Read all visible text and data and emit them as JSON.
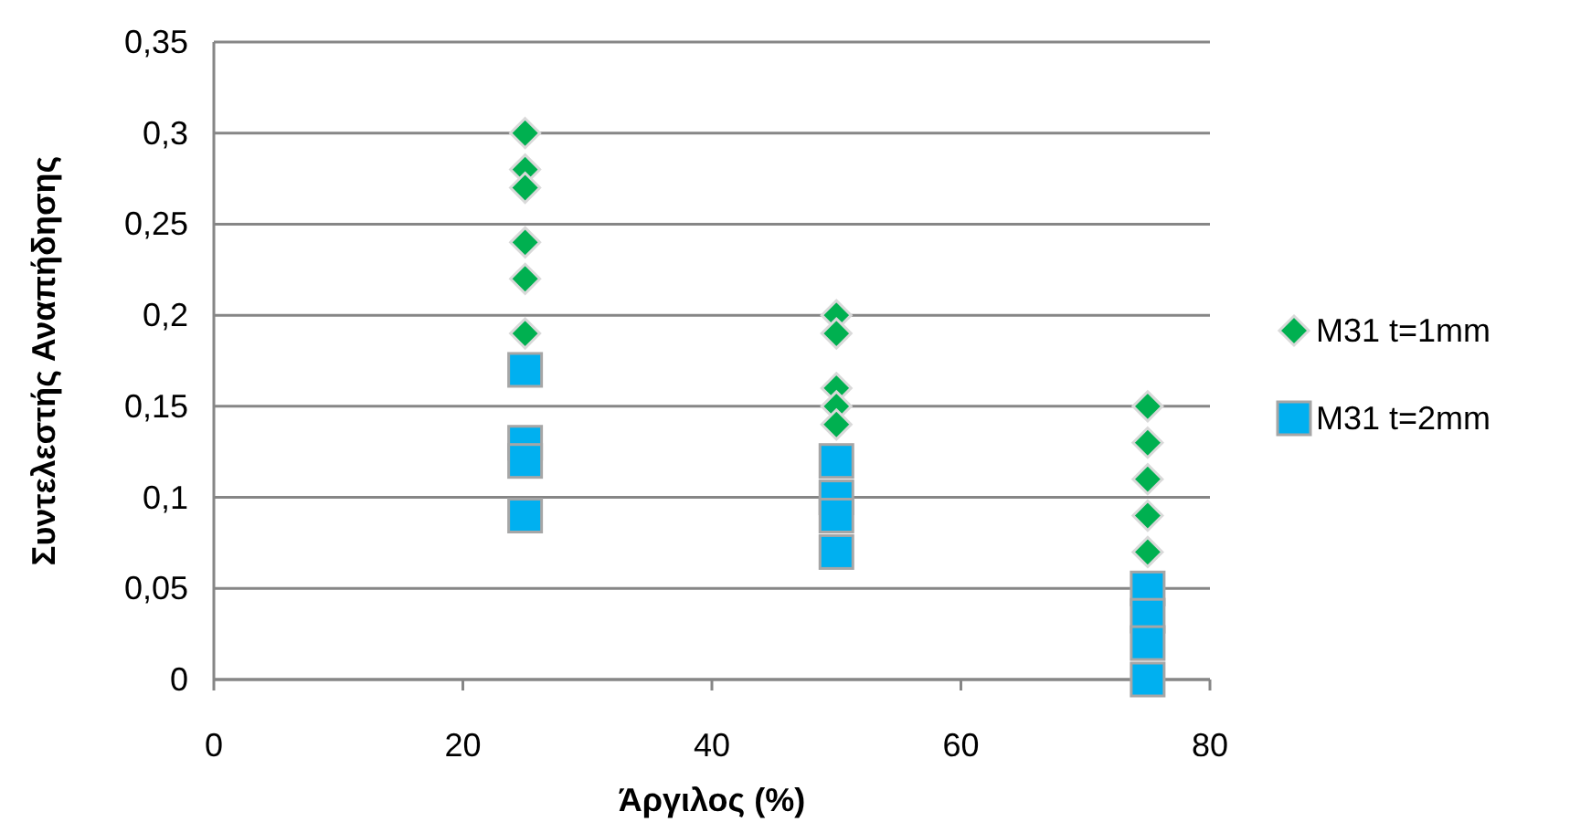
{
  "chart_data": {
    "type": "scatter",
    "xlabel": "Άργιλος (%)",
    "ylabel": "Συντελεστής Αναπήδησης",
    "xlim": [
      0,
      80
    ],
    "xticks": [
      0,
      20,
      40,
      60,
      80
    ],
    "ylim": [
      0,
      0.35
    ],
    "yticks": [
      {
        "value": 0,
        "label": "0"
      },
      {
        "value": 0.05,
        "label": "0,05"
      },
      {
        "value": 0.1,
        "label": "0,1"
      },
      {
        "value": 0.15,
        "label": "0,15"
      },
      {
        "value": 0.2,
        "label": "0,2"
      },
      {
        "value": 0.25,
        "label": "0,25"
      },
      {
        "value": 0.3,
        "label": "0,3"
      },
      {
        "value": 0.35,
        "label": "0,35"
      }
    ],
    "grid": "y",
    "legend": "right",
    "series": [
      {
        "name": "M31 t=1mm",
        "color": "#00b050",
        "marker": "diamond",
        "x": [
          25,
          25,
          25,
          25,
          25,
          25,
          50,
          50,
          50,
          50,
          50,
          75,
          75,
          75,
          75,
          75
        ],
        "values": [
          0.3,
          0.28,
          0.27,
          0.24,
          0.22,
          0.19,
          0.2,
          0.19,
          0.16,
          0.15,
          0.14,
          0.15,
          0.13,
          0.11,
          0.09,
          0.07
        ]
      },
      {
        "name": "M31 t=2mm",
        "color": "#00b0f0",
        "marker": "square",
        "x": [
          25,
          25,
          25,
          25,
          50,
          50,
          50,
          50,
          75,
          75,
          75,
          75
        ],
        "values": [
          0.17,
          0.13,
          0.12,
          0.09,
          0.12,
          0.1,
          0.09,
          0.07,
          0.05,
          0.035,
          0.02,
          0
        ]
      }
    ]
  }
}
